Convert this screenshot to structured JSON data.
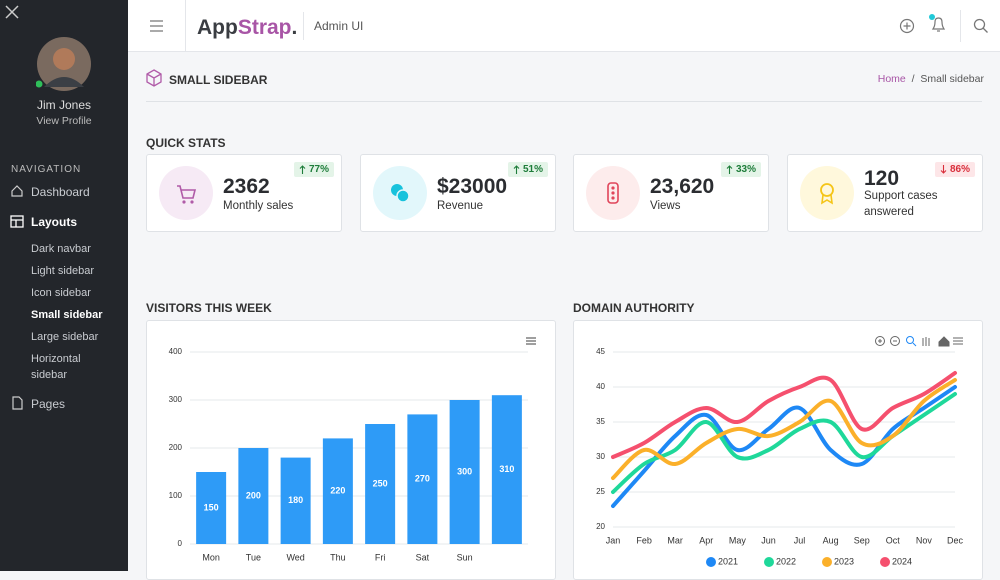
{
  "sidebar": {
    "user_name": "Jim Jones",
    "profile_link": "View Profile",
    "nav_heading": "NAVIGATION",
    "items": [
      {
        "label": "Dashboard"
      },
      {
        "label": "Layouts",
        "children": [
          "Dark navbar",
          "Light sidebar",
          "Icon sidebar",
          "Small sidebar",
          "Large sidebar",
          "Horizontal sidebar"
        ],
        "active_child": 3
      },
      {
        "label": "Pages"
      }
    ]
  },
  "header": {
    "brand_a": "App",
    "brand_b": "Strap",
    "brand_c": ".",
    "subtitle": "Admin UI"
  },
  "page": {
    "title": "SMALL SIDEBAR",
    "breadcrumb": [
      "Home",
      "Small sidebar"
    ],
    "separator": "/"
  },
  "stats": {
    "title": "QUICK STATS",
    "cards": [
      {
        "value": "2362",
        "label": "Monthly sales",
        "change": "77%",
        "trend": "up"
      },
      {
        "value": "$23000",
        "label": "Revenue",
        "change": "51%",
        "trend": "up"
      },
      {
        "value": "23,620",
        "label": "Views",
        "change": "33%",
        "trend": "up"
      },
      {
        "value": "120",
        "label": "Support cases answered",
        "change": "86%",
        "trend": "down"
      }
    ]
  },
  "chart_data": [
    {
      "type": "bar",
      "title": "VISITORS THIS WEEK",
      "categories": [
        "Mon",
        "Tue",
        "Wed",
        "Thu",
        "Fri",
        "Sat",
        "Sun",
        null
      ],
      "values": [
        150,
        200,
        180,
        220,
        250,
        270,
        300,
        310
      ],
      "color": "#2e9bf7",
      "ylim": [
        0,
        400
      ],
      "yticks": [
        0,
        100,
        200,
        300,
        400
      ],
      "grid": true,
      "data_labels": true
    },
    {
      "type": "line",
      "title": "DOMAIN AUTHORITY",
      "categories": [
        "Jan",
        "Feb",
        "Mar",
        "Apr",
        "May",
        "Jun",
        "Jul",
        "Aug",
        "Sep",
        "Oct",
        "Nov",
        "Dec"
      ],
      "ylim": [
        20,
        45
      ],
      "yticks": [
        20,
        25,
        30,
        35,
        40,
        45
      ],
      "grid": true,
      "smooth": true,
      "legend": "bottom",
      "series": [
        {
          "name": "2021",
          "color": "#1e88f5",
          "values": [
            23,
            28,
            33,
            36,
            31,
            34,
            37,
            31,
            29,
            34,
            37,
            40
          ]
        },
        {
          "name": "2022",
          "color": "#1fd89a",
          "values": [
            25,
            29,
            31,
            35,
            30,
            31,
            34,
            35,
            30,
            33,
            36,
            39
          ]
        },
        {
          "name": "2023",
          "color": "#fbb02a",
          "values": [
            27,
            31,
            29,
            32,
            34,
            33,
            35,
            38,
            32,
            33,
            38,
            41
          ]
        },
        {
          "name": "2024",
          "color": "#f5506e",
          "values": [
            30,
            32,
            35,
            37,
            35,
            38,
            40,
            41,
            34,
            37,
            39,
            42
          ]
        }
      ]
    }
  ]
}
